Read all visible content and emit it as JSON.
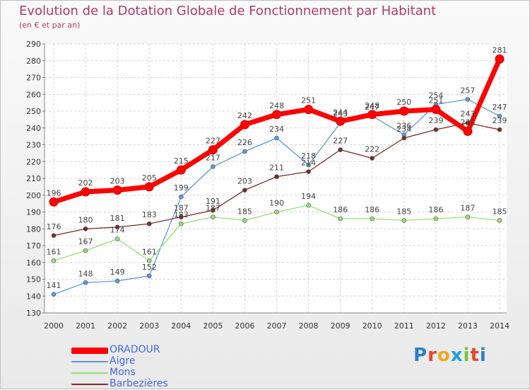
{
  "title": "Evolution de la Dotation Globale de Fonctionnement par Habitant",
  "subtitle": "(en € et par an)",
  "logo": {
    "text": "Proxiti",
    "letters": [
      "P",
      "r",
      "o",
      "x",
      "i",
      "t",
      "i"
    ],
    "colors": [
      "#2c7fc9",
      "#e5472a",
      "#f0a81e",
      "#1a9fd9",
      "#7dc243",
      "#e5472a",
      "#2c7fc9"
    ]
  },
  "chart_data": {
    "type": "line",
    "title": "Evolution de la Dotation Globale de Fonctionnement par Habitant",
    "xlabel": "",
    "ylabel": "(en € et par an)",
    "x": [
      2000,
      2001,
      2002,
      2003,
      2004,
      2005,
      2006,
      2007,
      2008,
      2009,
      2010,
      2011,
      2012,
      2013,
      2014
    ],
    "ylim": [
      130,
      290
    ],
    "yticks": [
      130,
      140,
      150,
      160,
      170,
      180,
      190,
      200,
      210,
      220,
      230,
      240,
      250,
      260,
      270,
      280,
      290
    ],
    "grid": true,
    "legend_position": "bottom-left",
    "series": [
      {
        "name": "ORADOUR",
        "color": "#ff0000",
        "values": [
          196,
          202,
          203,
          205,
          215,
          227,
          242,
          248,
          251,
          244,
          248,
          250,
          251,
          238,
          281
        ]
      },
      {
        "name": "Aigre",
        "color": "#5b9bd5",
        "values": [
          141,
          148,
          149,
          152,
          199,
          217,
          226,
          234,
          218,
          243,
          247,
          236,
          254,
          257,
          247
        ]
      },
      {
        "name": "Mons",
        "color": "#99dd77",
        "values": [
          161,
          167,
          174,
          161,
          183,
          187,
          185,
          190,
          194,
          186,
          186,
          185,
          186,
          187,
          185
        ]
      },
      {
        "name": "Barbezières",
        "color": "#7a2a2a",
        "values": [
          176,
          180,
          181,
          183,
          187,
          191,
          203,
          211,
          214,
          227,
          222,
          234,
          239,
          243,
          239
        ]
      }
    ]
  }
}
